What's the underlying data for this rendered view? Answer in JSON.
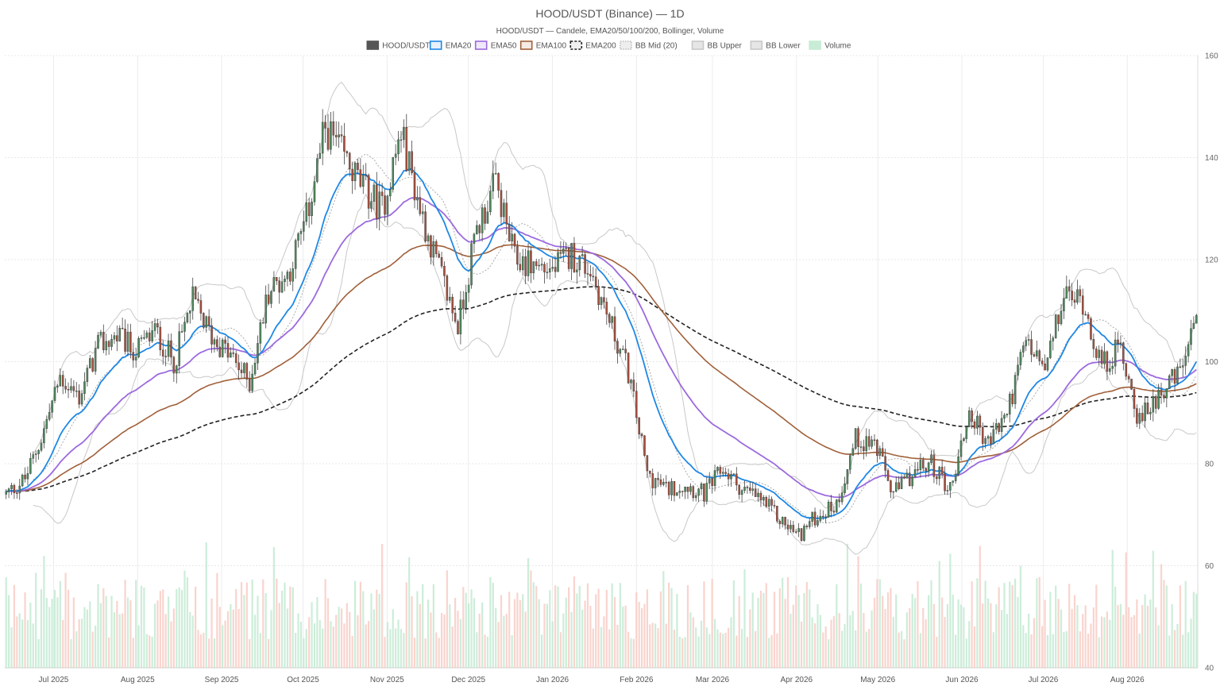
{
  "chart_data": {
    "type": "candlestick",
    "title": "HOOD/USDT (Binance) — 1D",
    "subtitle": "HOOD/USDT — Candele, EMA20/50/100/200, Bollinger, Volume",
    "legend": [
      {
        "name": "HOOD/USDT",
        "color": "#555555",
        "style": "solid-fill"
      },
      {
        "name": "EMA20",
        "color": "#1e88e5",
        "style": "line"
      },
      {
        "name": "EMA50",
        "color": "#9c6ade",
        "style": "line"
      },
      {
        "name": "EMA100",
        "color": "#a0603a",
        "style": "line"
      },
      {
        "name": "EMA200",
        "color": "#222222",
        "style": "dashed"
      },
      {
        "name": "BB Mid (20)",
        "color": "#aaaaaa",
        "style": "dotted"
      },
      {
        "name": "BB Upper",
        "color": "#c8c8c8",
        "style": "line"
      },
      {
        "name": "BB Lower",
        "color": "#c8c8c8",
        "style": "line"
      },
      {
        "name": "Volume",
        "color": "#b8e6c8",
        "style": "bar"
      }
    ],
    "legend_position": "top-center",
    "y_axis": {
      "position": "right",
      "min": 40,
      "max": 160,
      "ticks": [
        40,
        60,
        80,
        100,
        120,
        140,
        160
      ]
    },
    "x_axis": {
      "start": "2025-06-13",
      "end": "2026-08-27",
      "ticks": [
        {
          "date": "2025-07-01",
          "label": "Jul 2025"
        },
        {
          "date": "2025-08-01",
          "label": "Aug 2025"
        },
        {
          "date": "2025-09-01",
          "label": "Sep 2025"
        },
        {
          "date": "2025-10-01",
          "label": "Oct 2025"
        },
        {
          "date": "2025-11-01",
          "label": "Nov 2025"
        },
        {
          "date": "2025-12-01",
          "label": "Dec 2025"
        },
        {
          "date": "2026-01-01",
          "label": "Jan 2026"
        },
        {
          "date": "2026-02-01",
          "label": "Feb 2026"
        },
        {
          "date": "2026-03-01",
          "label": "Mar 2026"
        },
        {
          "date": "2026-04-01",
          "label": "Apr 2026"
        },
        {
          "date": "2026-05-01",
          "label": "May 2026"
        },
        {
          "date": "2026-06-01",
          "label": "Jun 2026"
        },
        {
          "date": "2026-07-01",
          "label": "Jul 2026"
        },
        {
          "date": "2026-08-01",
          "label": "Aug 2026"
        }
      ]
    },
    "grid": true,
    "close_path": [
      [
        "2025-06-13",
        74
      ],
      [
        "2025-06-20",
        77
      ],
      [
        "2025-06-26",
        85
      ],
      [
        "2025-07-03",
        97
      ],
      [
        "2025-07-10",
        93
      ],
      [
        "2025-07-17",
        103
      ],
      [
        "2025-07-24",
        105
      ],
      [
        "2025-07-31",
        102
      ],
      [
        "2025-08-07",
        106
      ],
      [
        "2025-08-14",
        100
      ],
      [
        "2025-08-21",
        112
      ],
      [
        "2025-08-28",
        105
      ],
      [
        "2025-09-04",
        101
      ],
      [
        "2025-09-11",
        96
      ],
      [
        "2025-09-18",
        114
      ],
      [
        "2025-09-25",
        117
      ],
      [
        "2025-10-02",
        128
      ],
      [
        "2025-10-09",
        146
      ],
      [
        "2025-10-16",
        140
      ],
      [
        "2025-10-23",
        134
      ],
      [
        "2025-10-30",
        130
      ],
      [
        "2025-11-06",
        145
      ],
      [
        "2025-11-13",
        130
      ],
      [
        "2025-11-20",
        118
      ],
      [
        "2025-11-27",
        107
      ],
      [
        "2025-12-04",
        126
      ],
      [
        "2025-12-11",
        135
      ],
      [
        "2025-12-18",
        120
      ],
      [
        "2026-01-01",
        118
      ],
      [
        "2026-01-08",
        121
      ],
      [
        "2026-01-15",
        118
      ],
      [
        "2026-01-22",
        108
      ],
      [
        "2026-01-29",
        98
      ],
      [
        "2026-02-05",
        78
      ],
      [
        "2026-02-12",
        75
      ],
      [
        "2026-02-19",
        76
      ],
      [
        "2026-02-26",
        74
      ],
      [
        "2026-03-05",
        79
      ],
      [
        "2026-03-12",
        75
      ],
      [
        "2026-03-19",
        73
      ],
      [
        "2026-03-26",
        69
      ],
      [
        "2026-04-02",
        66
      ],
      [
        "2026-04-09",
        70
      ],
      [
        "2026-04-16",
        72
      ],
      [
        "2026-04-23",
        85
      ],
      [
        "2026-04-30",
        84
      ],
      [
        "2026-05-07",
        74
      ],
      [
        "2026-05-14",
        78
      ],
      [
        "2026-05-21",
        80
      ],
      [
        "2026-05-28",
        75
      ],
      [
        "2026-06-04",
        90
      ],
      [
        "2026-06-11",
        84
      ],
      [
        "2026-06-18",
        90
      ],
      [
        "2026-06-25",
        104
      ],
      [
        "2026-07-02",
        98
      ],
      [
        "2026-07-09",
        113
      ],
      [
        "2026-07-16",
        112
      ],
      [
        "2026-07-23",
        99
      ],
      [
        "2026-07-30",
        103
      ],
      [
        "2026-08-06",
        88
      ],
      [
        "2026-08-13",
        94
      ],
      [
        "2026-08-20",
        97
      ],
      [
        "2026-08-27",
        107
      ]
    ]
  }
}
